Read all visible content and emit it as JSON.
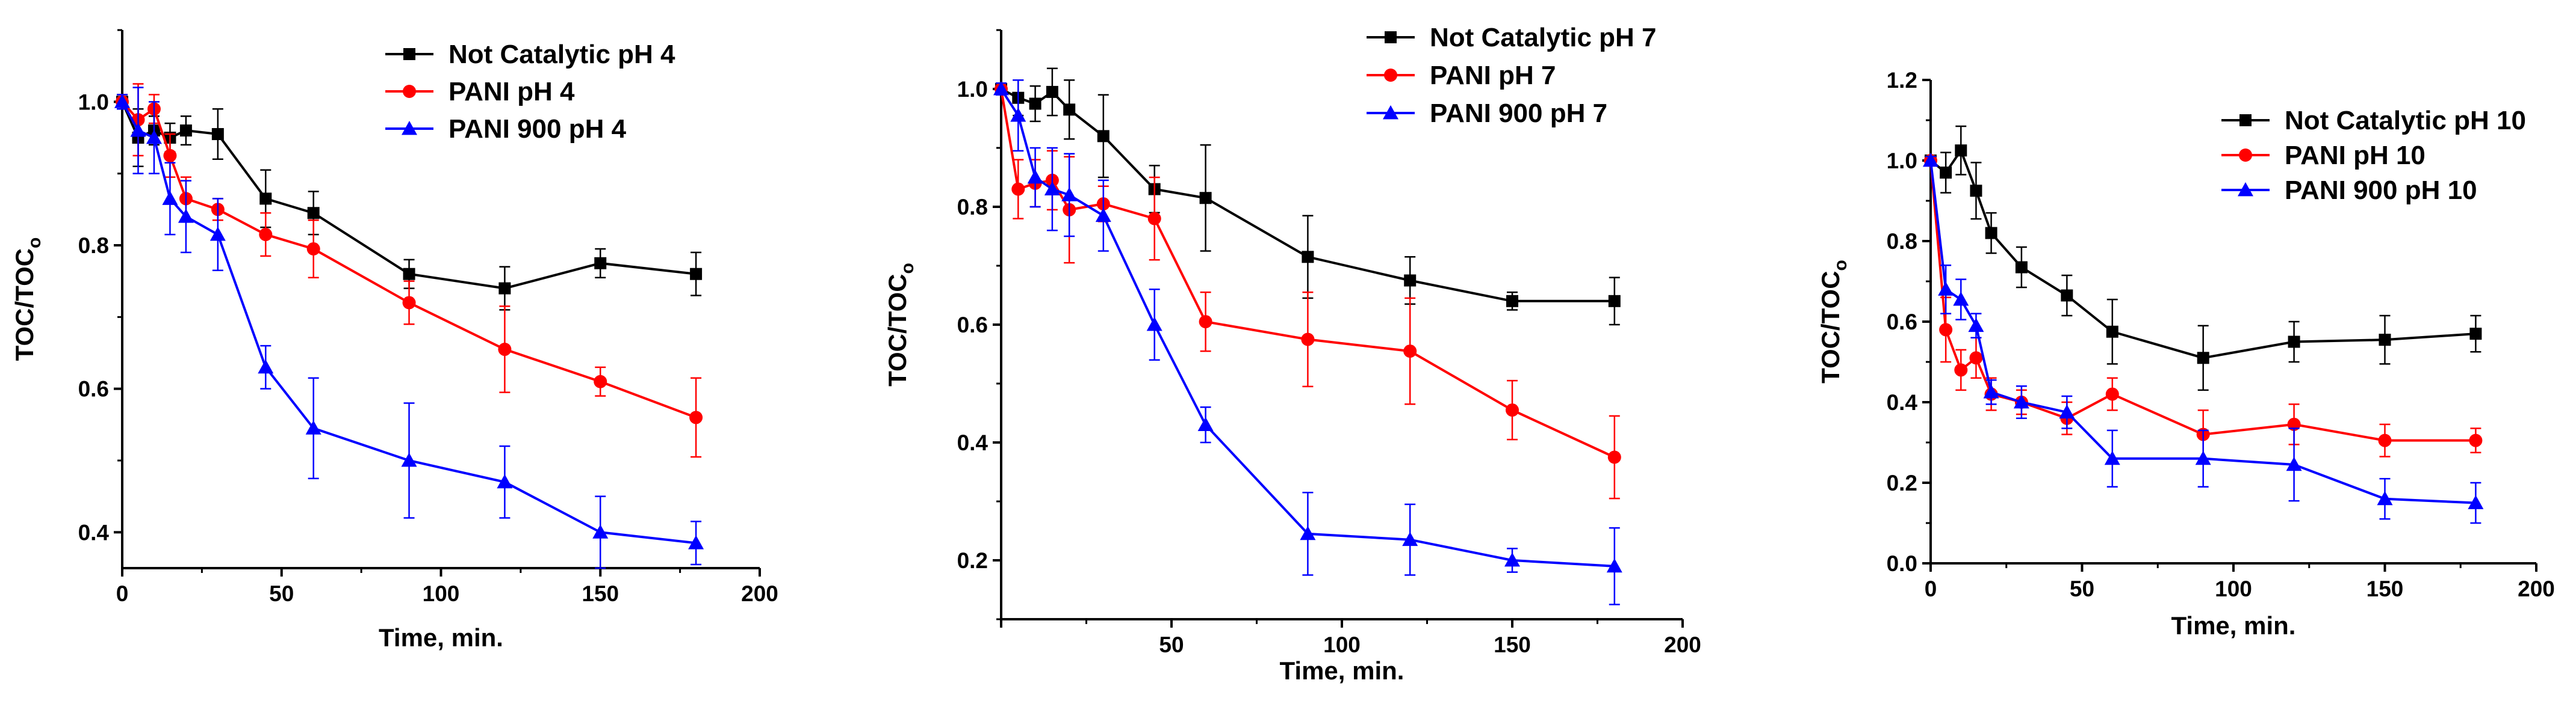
{
  "chart_data": [
    {
      "type": "line",
      "title": "",
      "xlabel": "Time, min.",
      "ylabel": "TOC/TOC",
      "ylabel_subscript": "o",
      "xlim": [
        0,
        200
      ],
      "ylim": [
        0.35,
        1.1
      ],
      "xticks": [
        0,
        50,
        100,
        150,
        200
      ],
      "yticks": [
        0.4,
        0.6,
        0.8,
        1.0
      ],
      "xtick_labels": [
        "0",
        "50",
        "100",
        "150",
        "200"
      ],
      "ytick_labels": [
        "0.4",
        "0.6",
        "0.8",
        "1.0"
      ],
      "legend_position": "top-right",
      "series": [
        {
          "name": "Not Catalytic pH 4",
          "color": "#000000",
          "marker": "square",
          "x": [
            0,
            5,
            10,
            15,
            20,
            30,
            45,
            60,
            90,
            120,
            150,
            180
          ],
          "y": [
            1.0,
            0.95,
            0.96,
            0.95,
            0.96,
            0.955,
            0.865,
            0.845,
            0.76,
            0.74,
            0.775,
            0.76
          ],
          "err": [
            0.01,
            0.04,
            0.02,
            0.02,
            0.02,
            0.035,
            0.04,
            0.03,
            0.02,
            0.03,
            0.02,
            0.03
          ]
        },
        {
          "name": "PANI pH 4",
          "color": "#ff0000",
          "marker": "circle",
          "x": [
            0,
            5,
            10,
            15,
            20,
            30,
            45,
            60,
            90,
            120,
            150,
            180
          ],
          "y": [
            1.0,
            0.975,
            0.99,
            0.925,
            0.865,
            0.85,
            0.815,
            0.795,
            0.72,
            0.655,
            0.61,
            0.56
          ],
          "err": [
            0.01,
            0.05,
            0.02,
            0.03,
            0.03,
            0.015,
            0.03,
            0.04,
            0.03,
            0.06,
            0.02,
            0.055
          ]
        },
        {
          "name": "PANI 900 pH 4",
          "color": "#0000ff",
          "marker": "triangle",
          "x": [
            0,
            5,
            10,
            15,
            20,
            30,
            45,
            60,
            90,
            120,
            150,
            180
          ],
          "y": [
            1.0,
            0.96,
            0.95,
            0.865,
            0.84,
            0.815,
            0.63,
            0.545,
            0.5,
            0.47,
            0.4,
            0.385
          ],
          "err": [
            0.01,
            0.06,
            0.05,
            0.05,
            0.05,
            0.05,
            0.03,
            0.07,
            0.08,
            0.05,
            0.05,
            0.03
          ]
        }
      ]
    },
    {
      "type": "line",
      "title": "",
      "xlabel": "Time, min.",
      "ylabel": "TOC/TOC",
      "ylabel_subscript": "o",
      "xlim": [
        0,
        200
      ],
      "ylim": [
        0.1,
        1.1
      ],
      "xticks": [
        50,
        100,
        150,
        200
      ],
      "yticks": [
        0.2,
        0.4,
        0.6,
        0.8,
        1.0
      ],
      "xtick_labels": [
        "50",
        "100",
        "150",
        "200"
      ],
      "ytick_labels": [
        "0.2",
        "0.4",
        "0.6",
        "0.8",
        "1.0"
      ],
      "legend_position": "top-right",
      "series": [
        {
          "name": "Not Catalytic pH 7",
          "color": "#000000",
          "marker": "square",
          "x": [
            0,
            5,
            10,
            15,
            20,
            30,
            45,
            60,
            90,
            120,
            150,
            180
          ],
          "y": [
            1.0,
            0.985,
            0.975,
            0.995,
            0.965,
            0.92,
            0.83,
            0.815,
            0.715,
            0.675,
            0.64,
            0.64
          ],
          "err": [
            0.01,
            0.03,
            0.03,
            0.04,
            0.05,
            0.07,
            0.04,
            0.09,
            0.07,
            0.04,
            0.015,
            0.04
          ]
        },
        {
          "name": "PANI pH 7",
          "color": "#ff0000",
          "marker": "circle",
          "x": [
            0,
            5,
            10,
            15,
            20,
            30,
            45,
            60,
            90,
            120,
            150,
            180
          ],
          "y": [
            1.0,
            0.83,
            0.84,
            0.845,
            0.795,
            0.805,
            0.78,
            0.605,
            0.575,
            0.555,
            0.455,
            0.375
          ],
          "err": [
            0.01,
            0.05,
            0.04,
            0.05,
            0.09,
            0.03,
            0.07,
            0.05,
            0.08,
            0.09,
            0.05,
            0.07
          ]
        },
        {
          "name": "PANI 900 pH 7",
          "color": "#0000ff",
          "marker": "triangle",
          "x": [
            0,
            5,
            10,
            15,
            20,
            30,
            45,
            60,
            90,
            120,
            150,
            180
          ],
          "y": [
            1.0,
            0.955,
            0.85,
            0.83,
            0.82,
            0.785,
            0.6,
            0.43,
            0.245,
            0.235,
            0.2,
            0.19
          ],
          "err": [
            0.01,
            0.06,
            0.05,
            0.07,
            0.07,
            0.06,
            0.06,
            0.03,
            0.07,
            0.06,
            0.02,
            0.065
          ]
        }
      ]
    },
    {
      "type": "line",
      "title": "",
      "xlabel": "Time, min.",
      "ylabel": "TOC/TOC",
      "ylabel_subscript": "o",
      "xlim": [
        0,
        200
      ],
      "ylim": [
        0.0,
        1.2
      ],
      "xticks": [
        0,
        50,
        100,
        150,
        200
      ],
      "yticks": [
        0.0,
        0.2,
        0.4,
        0.6,
        0.8,
        1.0,
        1.2
      ],
      "xtick_labels": [
        "0",
        "50",
        "100",
        "150",
        "200"
      ],
      "ytick_labels": [
        "0.0",
        "0.2",
        "0.4",
        "0.6",
        "0.8",
        "1.0",
        "1.2"
      ],
      "legend_position": "top-right",
      "series": [
        {
          "name": "Not Catalytic pH 10",
          "color": "#000000",
          "marker": "square",
          "x": [
            0,
            5,
            10,
            15,
            20,
            30,
            45,
            60,
            90,
            120,
            150,
            180
          ],
          "y": [
            1.0,
            0.97,
            1.025,
            0.925,
            0.82,
            0.735,
            0.665,
            0.575,
            0.51,
            0.55,
            0.555,
            0.57
          ],
          "err": [
            0.01,
            0.05,
            0.06,
            0.07,
            0.05,
            0.05,
            0.05,
            0.08,
            0.08,
            0.05,
            0.06,
            0.045
          ]
        },
        {
          "name": "PANI pH 10",
          "color": "#ff0000",
          "marker": "circle",
          "x": [
            0,
            5,
            10,
            15,
            20,
            30,
            45,
            60,
            90,
            120,
            150,
            180
          ],
          "y": [
            1.0,
            0.58,
            0.48,
            0.51,
            0.42,
            0.4,
            0.36,
            0.42,
            0.32,
            0.345,
            0.305,
            0.305
          ],
          "err": [
            0.01,
            0.08,
            0.05,
            0.05,
            0.04,
            0.03,
            0.04,
            0.04,
            0.06,
            0.05,
            0.04,
            0.03
          ]
        },
        {
          "name": "PANI 900 pH 10",
          "color": "#0000ff",
          "marker": "triangle",
          "x": [
            0,
            5,
            10,
            15,
            20,
            30,
            45,
            60,
            90,
            120,
            150,
            180
          ],
          "y": [
            1.0,
            0.68,
            0.655,
            0.59,
            0.425,
            0.4,
            0.375,
            0.26,
            0.26,
            0.245,
            0.16,
            0.15
          ],
          "err": [
            0.01,
            0.06,
            0.05,
            0.03,
            0.03,
            0.04,
            0.04,
            0.07,
            0.07,
            0.09,
            0.05,
            0.05
          ]
        }
      ]
    }
  ]
}
